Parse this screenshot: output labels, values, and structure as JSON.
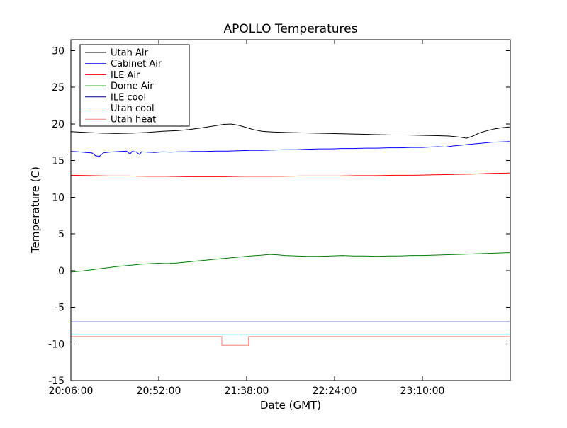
{
  "chart_data": {
    "type": "line",
    "title": "APOLLO Temperatures",
    "xlabel": "Date (GMT)",
    "ylabel": "Temperature (C)",
    "grid": false,
    "legend_position": "upper-left",
    "x_unit": "minutes since 20:06:00 GMT",
    "xlim": [
      0,
      230
    ],
    "ylim": [
      -15,
      31.5
    ],
    "yticks": [
      30,
      25,
      20,
      15,
      10,
      5,
      0,
      -5,
      -10,
      -15
    ],
    "xticks": [
      {
        "value": 0,
        "label": "20:06:00"
      },
      {
        "value": 46,
        "label": "20:52:00"
      },
      {
        "value": 92,
        "label": "21:38:00"
      },
      {
        "value": 138,
        "label": "22:24:00"
      },
      {
        "value": 184,
        "label": "23:10:00"
      }
    ],
    "series": [
      {
        "name": "Utah Air",
        "color": "#000000",
        "points": [
          [
            0,
            18.95
          ],
          [
            8,
            18.85
          ],
          [
            16,
            18.75
          ],
          [
            24,
            18.7
          ],
          [
            32,
            18.75
          ],
          [
            40,
            18.85
          ],
          [
            48,
            19.0
          ],
          [
            56,
            19.1
          ],
          [
            62,
            19.25
          ],
          [
            68,
            19.45
          ],
          [
            74,
            19.7
          ],
          [
            80,
            19.95
          ],
          [
            84,
            20.0
          ],
          [
            88,
            19.8
          ],
          [
            92,
            19.5
          ],
          [
            96,
            19.2
          ],
          [
            100,
            19.0
          ],
          [
            106,
            18.9
          ],
          [
            112,
            18.85
          ],
          [
            120,
            18.8
          ],
          [
            128,
            18.75
          ],
          [
            136,
            18.7
          ],
          [
            144,
            18.65
          ],
          [
            152,
            18.6
          ],
          [
            160,
            18.55
          ],
          [
            168,
            18.5
          ],
          [
            176,
            18.5
          ],
          [
            184,
            18.45
          ],
          [
            192,
            18.4
          ],
          [
            198,
            18.35
          ],
          [
            204,
            18.2
          ],
          [
            207,
            18.05
          ],
          [
            210,
            18.3
          ],
          [
            214,
            18.8
          ],
          [
            218,
            19.1
          ],
          [
            222,
            19.35
          ],
          [
            226,
            19.5
          ],
          [
            230,
            19.6
          ]
        ]
      },
      {
        "name": "Cabinet Air",
        "color": "#0000ff",
        "points": [
          [
            0,
            16.25
          ],
          [
            4,
            16.2
          ],
          [
            8,
            16.1
          ],
          [
            11,
            16.05
          ],
          [
            13,
            15.65
          ],
          [
            15,
            15.6
          ],
          [
            17,
            16.05
          ],
          [
            20,
            16.15
          ],
          [
            23,
            16.2
          ],
          [
            26,
            16.25
          ],
          [
            29,
            16.3
          ],
          [
            31,
            15.9
          ],
          [
            32,
            16.25
          ],
          [
            34,
            16.2
          ],
          [
            36,
            15.85
          ],
          [
            37,
            16.2
          ],
          [
            40,
            16.15
          ],
          [
            44,
            16.1
          ],
          [
            48,
            16.2
          ],
          [
            52,
            16.15
          ],
          [
            56,
            16.2
          ],
          [
            60,
            16.2
          ],
          [
            64,
            16.25
          ],
          [
            70,
            16.25
          ],
          [
            76,
            16.3
          ],
          [
            82,
            16.3
          ],
          [
            88,
            16.35
          ],
          [
            94,
            16.4
          ],
          [
            100,
            16.4
          ],
          [
            106,
            16.45
          ],
          [
            112,
            16.5
          ],
          [
            118,
            16.5
          ],
          [
            124,
            16.55
          ],
          [
            130,
            16.6
          ],
          [
            136,
            16.6
          ],
          [
            142,
            16.65
          ],
          [
            148,
            16.65
          ],
          [
            154,
            16.7
          ],
          [
            160,
            16.7
          ],
          [
            166,
            16.75
          ],
          [
            172,
            16.75
          ],
          [
            178,
            16.8
          ],
          [
            184,
            16.8
          ],
          [
            188,
            16.85
          ],
          [
            192,
            16.9
          ],
          [
            196,
            16.85
          ],
          [
            200,
            17.0
          ],
          [
            204,
            17.1
          ],
          [
            208,
            17.2
          ],
          [
            212,
            17.3
          ],
          [
            216,
            17.4
          ],
          [
            220,
            17.5
          ],
          [
            225,
            17.55
          ],
          [
            230,
            17.6
          ]
        ]
      },
      {
        "name": "ILE Air",
        "color": "#ff0000",
        "points": [
          [
            0,
            13.0
          ],
          [
            10,
            12.95
          ],
          [
            20,
            12.9
          ],
          [
            30,
            12.9
          ],
          [
            40,
            12.85
          ],
          [
            50,
            12.85
          ],
          [
            60,
            12.8
          ],
          [
            70,
            12.8
          ],
          [
            80,
            12.8
          ],
          [
            90,
            12.85
          ],
          [
            100,
            12.85
          ],
          [
            110,
            12.85
          ],
          [
            120,
            12.9
          ],
          [
            130,
            12.9
          ],
          [
            140,
            12.9
          ],
          [
            150,
            12.95
          ],
          [
            160,
            12.95
          ],
          [
            170,
            13.0
          ],
          [
            180,
            13.0
          ],
          [
            190,
            13.05
          ],
          [
            200,
            13.1
          ],
          [
            210,
            13.15
          ],
          [
            220,
            13.25
          ],
          [
            230,
            13.3
          ]
        ]
      },
      {
        "name": "Dome Air",
        "color": "#007f00",
        "points": [
          [
            0,
            -0.2
          ],
          [
            6,
            -0.05
          ],
          [
            12,
            0.15
          ],
          [
            18,
            0.35
          ],
          [
            24,
            0.55
          ],
          [
            30,
            0.7
          ],
          [
            36,
            0.85
          ],
          [
            42,
            0.95
          ],
          [
            46,
            1.0
          ],
          [
            50,
            0.95
          ],
          [
            54,
            1.0
          ],
          [
            58,
            1.1
          ],
          [
            64,
            1.25
          ],
          [
            70,
            1.4
          ],
          [
            76,
            1.55
          ],
          [
            82,
            1.7
          ],
          [
            88,
            1.85
          ],
          [
            94,
            2.0
          ],
          [
            100,
            2.1
          ],
          [
            104,
            2.2
          ],
          [
            108,
            2.15
          ],
          [
            112,
            2.05
          ],
          [
            118,
            2.0
          ],
          [
            124,
            1.95
          ],
          [
            130,
            1.95
          ],
          [
            136,
            2.0
          ],
          [
            142,
            2.05
          ],
          [
            148,
            2.0
          ],
          [
            154,
            2.0
          ],
          [
            160,
            1.95
          ],
          [
            166,
            2.0
          ],
          [
            172,
            2.0
          ],
          [
            178,
            2.05
          ],
          [
            184,
            2.05
          ],
          [
            190,
            2.1
          ],
          [
            196,
            2.15
          ],
          [
            202,
            2.2
          ],
          [
            208,
            2.25
          ],
          [
            214,
            2.3
          ],
          [
            220,
            2.35
          ],
          [
            225,
            2.4
          ],
          [
            230,
            2.45
          ]
        ]
      },
      {
        "name": "ILE cool",
        "color": "#000080",
        "points": [
          [
            0,
            -7.0
          ],
          [
            230,
            -7.0
          ]
        ]
      },
      {
        "name": "Utah cool",
        "color": "#00ffff",
        "points": [
          [
            0,
            -8.7
          ],
          [
            230,
            -8.7
          ]
        ]
      },
      {
        "name": "Utah heat",
        "color": "#fa8072",
        "points": [
          [
            0,
            -9.0
          ],
          [
            79,
            -9.0
          ],
          [
            79,
            -10.2
          ],
          [
            93,
            -10.2
          ],
          [
            93,
            -9.0
          ],
          [
            230,
            -9.0
          ]
        ]
      }
    ]
  }
}
